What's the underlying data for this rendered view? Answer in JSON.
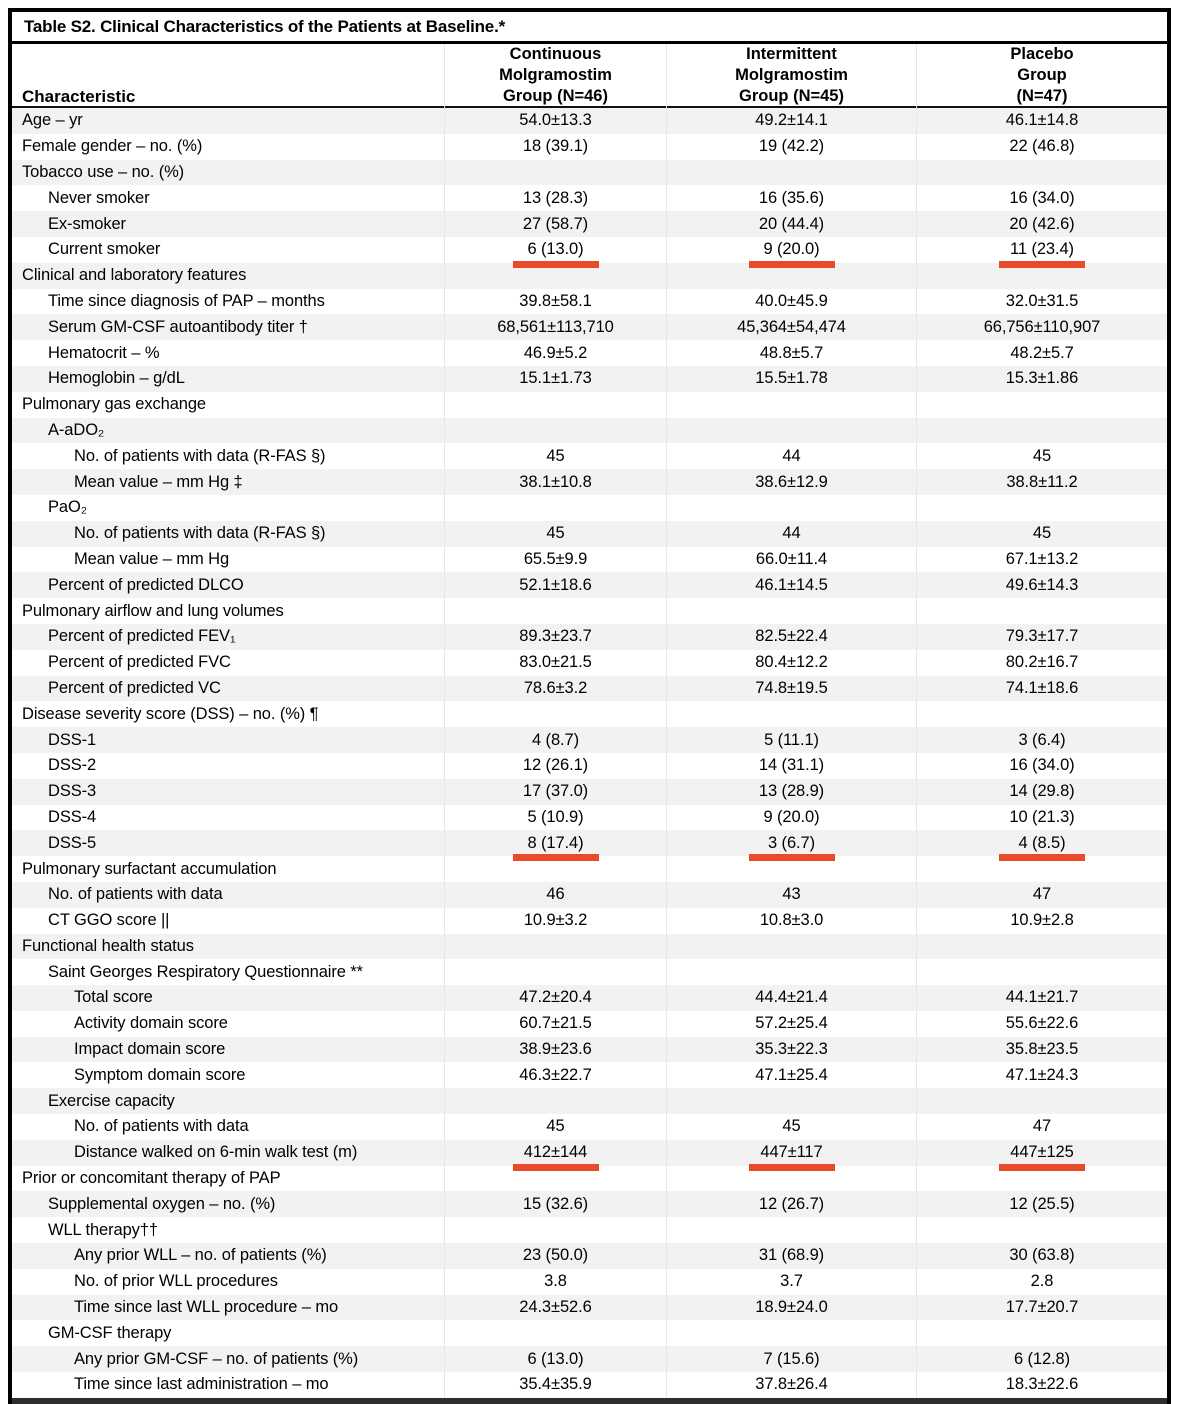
{
  "table": {
    "title": "Table S2. Clinical Characteristics of the Patients at Baseline.*",
    "header": {
      "characteristic": "Characteristic",
      "groups": [
        {
          "lines": [
            "Continuous",
            "Molgramostim",
            "Group (N=46)"
          ]
        },
        {
          "lines": [
            "Intermittent",
            "Molgramostim",
            "Group (N=45)"
          ]
        },
        {
          "lines": [
            "Placebo",
            "Group",
            "(N=47)"
          ]
        }
      ]
    },
    "colors": {
      "band": "#f2f2f2",
      "underline_annotation": "#e84b2a",
      "border": "#000000"
    },
    "rows": [
      {
        "label": "Age – yr",
        "indent": 0,
        "values": [
          "54.0±13.3",
          "49.2±14.1",
          "46.1±14.8"
        ]
      },
      {
        "label": "Female gender – no. (%)",
        "indent": 0,
        "values": [
          "18 (39.1)",
          "19 (42.2)",
          "22 (46.8)"
        ]
      },
      {
        "label": "Tobacco use – no. (%)",
        "indent": 0,
        "values": [
          "",
          "",
          ""
        ]
      },
      {
        "label": "Never smoker",
        "indent": 1,
        "values": [
          "13 (28.3)",
          "16 (35.6)",
          "16 (34.0)"
        ]
      },
      {
        "label": "Ex-smoker",
        "indent": 1,
        "values": [
          "27 (58.7)",
          "20 (44.4)",
          "20 (42.6)"
        ]
      },
      {
        "label": "Current smoker",
        "indent": 1,
        "values": [
          "6 (13.0)",
          "9 (20.0)",
          "11 (23.4)"
        ],
        "underline": true
      },
      {
        "label": "Clinical and laboratory features",
        "indent": 0,
        "values": [
          "",
          "",
          ""
        ]
      },
      {
        "label": "Time since diagnosis of PAP – months",
        "indent": 1,
        "values": [
          "39.8±58.1",
          "40.0±45.9",
          "32.0±31.5"
        ]
      },
      {
        "label": "Serum GM-CSF autoantibody titer †",
        "indent": 1,
        "values": [
          "68,561±113,710",
          "45,364±54,474",
          "66,756±110,907"
        ]
      },
      {
        "label": "Hematocrit – %",
        "indent": 1,
        "values": [
          "46.9±5.2",
          "48.8±5.7",
          "48.2±5.7"
        ]
      },
      {
        "label": "Hemoglobin – g/dL",
        "indent": 1,
        "values": [
          "15.1±1.73",
          "15.5±1.78",
          "15.3±1.86"
        ]
      },
      {
        "label": "Pulmonary gas exchange",
        "indent": 0,
        "values": [
          "",
          "",
          ""
        ]
      },
      {
        "label": "A-aDO₂",
        "indent": 1,
        "values": [
          "",
          "",
          ""
        ]
      },
      {
        "label": "No. of patients with data (R-FAS §)",
        "indent": 2,
        "values": [
          "45",
          "44",
          "45"
        ]
      },
      {
        "label": "Mean value – mm Hg ‡",
        "indent": 2,
        "values": [
          "38.1±10.8",
          "38.6±12.9",
          "38.8±11.2"
        ]
      },
      {
        "label": "PaO₂",
        "indent": 1,
        "values": [
          "",
          "",
          ""
        ]
      },
      {
        "label": "No. of patients with data (R-FAS §)",
        "indent": 2,
        "values": [
          "45",
          "44",
          "45"
        ]
      },
      {
        "label": "Mean value – mm Hg",
        "indent": 2,
        "values": [
          "65.5±9.9",
          "66.0±11.4",
          "67.1±13.2"
        ]
      },
      {
        "label": "Percent of predicted DLCO",
        "indent": 1,
        "values": [
          "52.1±18.6",
          "46.1±14.5",
          "49.6±14.3"
        ]
      },
      {
        "label": "Pulmonary airflow and lung volumes",
        "indent": 0,
        "values": [
          "",
          "",
          ""
        ]
      },
      {
        "label": "Percent of predicted FEV₁",
        "indent": 1,
        "values": [
          "89.3±23.7",
          "82.5±22.4",
          "79.3±17.7"
        ]
      },
      {
        "label": "Percent of predicted FVC",
        "indent": 1,
        "values": [
          "83.0±21.5",
          "80.4±12.2",
          "80.2±16.7"
        ]
      },
      {
        "label": "Percent of predicted VC",
        "indent": 1,
        "values": [
          "78.6±3.2",
          "74.8±19.5",
          "74.1±18.6"
        ]
      },
      {
        "label": "Disease severity score (DSS) – no. (%) ¶",
        "indent": 0,
        "values": [
          "",
          "",
          ""
        ]
      },
      {
        "label": "DSS-1",
        "indent": 1,
        "values": [
          "4 (8.7)",
          "5 (11.1)",
          "3 (6.4)"
        ]
      },
      {
        "label": "DSS-2",
        "indent": 1,
        "values": [
          "12 (26.1)",
          "14 (31.1)",
          "16 (34.0)"
        ]
      },
      {
        "label": "DSS-3",
        "indent": 1,
        "values": [
          "17 (37.0)",
          "13 (28.9)",
          "14 (29.8)"
        ]
      },
      {
        "label": "DSS-4",
        "indent": 1,
        "values": [
          "5 (10.9)",
          "9 (20.0)",
          "10 (21.3)"
        ]
      },
      {
        "label": "DSS-5",
        "indent": 1,
        "values": [
          "8 (17.4)",
          "3 (6.7)",
          "4 (8.5)"
        ],
        "underline": true
      },
      {
        "label": "Pulmonary surfactant accumulation",
        "indent": 0,
        "values": [
          "",
          "",
          ""
        ]
      },
      {
        "label": "No. of patients with data",
        "indent": 1,
        "values": [
          "46",
          "43",
          "47"
        ]
      },
      {
        "label": "CT GGO score ||",
        "indent": 1,
        "values": [
          "10.9±3.2",
          "10.8±3.0",
          "10.9±2.8"
        ]
      },
      {
        "label": "Functional health status",
        "indent": 0,
        "values": [
          "",
          "",
          ""
        ]
      },
      {
        "label": "Saint Georges Respiratory Questionnaire **",
        "indent": 1,
        "values": [
          "",
          "",
          ""
        ]
      },
      {
        "label": "Total score",
        "indent": 2,
        "values": [
          "47.2±20.4",
          "44.4±21.4",
          "44.1±21.7"
        ]
      },
      {
        "label": "Activity domain score",
        "indent": 2,
        "values": [
          "60.7±21.5",
          "57.2±25.4",
          "55.6±22.6"
        ]
      },
      {
        "label": "Impact domain score",
        "indent": 2,
        "values": [
          "38.9±23.6",
          "35.3±22.3",
          "35.8±23.5"
        ]
      },
      {
        "label": "Symptom domain score",
        "indent": 2,
        "values": [
          "46.3±22.7",
          "47.1±25.4",
          "47.1±24.3"
        ]
      },
      {
        "label": "Exercise capacity",
        "indent": 1,
        "values": [
          "",
          "",
          ""
        ]
      },
      {
        "label": "No. of patients with data",
        "indent": 2,
        "values": [
          "45",
          "45",
          "47"
        ]
      },
      {
        "label": "Distance walked on 6-min walk test (m)",
        "indent": 2,
        "values": [
          "412±144",
          "447±117",
          "447±125"
        ],
        "underline": true
      },
      {
        "label": "Prior or concomitant therapy of PAP",
        "indent": 0,
        "values": [
          "",
          "",
          ""
        ]
      },
      {
        "label": "Supplemental oxygen – no. (%)",
        "indent": 1,
        "values": [
          "15 (32.6)",
          "12 (26.7)",
          "12 (25.5)"
        ]
      },
      {
        "label": "WLL therapy††",
        "indent": 1,
        "values": [
          "",
          "",
          ""
        ]
      },
      {
        "label": "Any prior WLL – no. of patients (%)",
        "indent": 2,
        "values": [
          "23 (50.0)",
          "31 (68.9)",
          "30 (63.8)"
        ]
      },
      {
        "label": "No. of prior WLL procedures",
        "indent": 2,
        "values": [
          "3.8",
          "3.7",
          "2.8"
        ]
      },
      {
        "label": "Time since last WLL procedure – mo",
        "indent": 2,
        "values": [
          "24.3±52.6",
          "18.9±24.0",
          "17.7±20.7"
        ]
      },
      {
        "label": "GM-CSF therapy",
        "indent": 1,
        "values": [
          "",
          "",
          ""
        ]
      },
      {
        "label": "Any prior GM-CSF – no. of patients (%)",
        "indent": 2,
        "values": [
          "6 (13.0)",
          "7 (15.6)",
          "6 (12.8)"
        ]
      },
      {
        "label": "Time since last administration – mo",
        "indent": 2,
        "values": [
          "35.4±35.9",
          "37.8±26.4",
          "18.3±22.6"
        ]
      }
    ]
  }
}
